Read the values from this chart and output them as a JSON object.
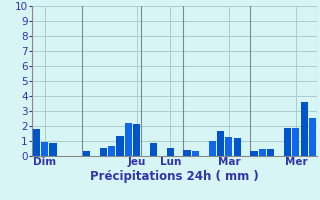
{
  "title": "",
  "xlabel": "Précipitations 24h ( mm )",
  "ylabel": "",
  "background_color": "#d8f5f5",
  "bar_color": "#0055cc",
  "bar_color2": "#1166ee",
  "grid_color": "#aacccc",
  "ylim": [
    0,
    10
  ],
  "yticks": [
    0,
    1,
    2,
    3,
    4,
    5,
    6,
    7,
    8,
    9,
    10
  ],
  "day_labels": [
    "Dim",
    "Jeu",
    "Lun",
    "Mar",
    "Mer"
  ],
  "day_positions": [
    1,
    12,
    16,
    23,
    31
  ],
  "num_bars": 34,
  "values": [
    1.8,
    0.95,
    0.9,
    0.0,
    0.0,
    0.0,
    0.35,
    0.0,
    0.55,
    0.65,
    1.35,
    2.2,
    2.15,
    0.0,
    0.9,
    0.0,
    0.55,
    0.0,
    0.4,
    0.35,
    0.0,
    1.0,
    1.65,
    1.25,
    1.2,
    0.0,
    0.35,
    0.5,
    0.5,
    0.0,
    1.9,
    1.85,
    3.6,
    2.55
  ],
  "day_line_positions": [
    0,
    6,
    13,
    18,
    26,
    34
  ],
  "text_color": "#3333aa",
  "axis_line_color": "#888888",
  "xlabel_fontsize": 8.5,
  "ytick_fontsize": 7.5,
  "xtick_fontsize": 7.5
}
